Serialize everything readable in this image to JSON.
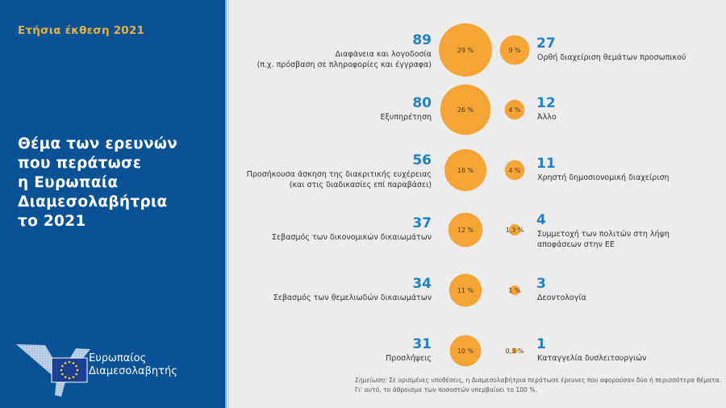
{
  "sidebar": {
    "report_year": "Ετήσια έκθεση 2021",
    "title_lines": [
      "Θέμα των ερευνών",
      "που περάτωσε",
      "η Ευρωπαία",
      "Διαμεσολαβήτρια",
      "το 2021"
    ],
    "logo_text_line1": "Ευρωπαίος",
    "logo_text_line2": "Διαμεσολαβητής"
  },
  "colors": {
    "panel": "#0a5296",
    "accent_gold": "#e8b23c",
    "number_blue": "#1f82c6",
    "bubble_orange": "#f5a535",
    "background": "#ececec"
  },
  "chart_data": {
    "type": "bubble",
    "title": "Θέμα των ερευνών που περάτωσε η Ευρωπαία Διαμεσολαβήτρια το 2021",
    "left_column": [
      {
        "count": 89,
        "percent_label": "29 %",
        "percent": 29,
        "label_lines": [
          "Διαφάνεια και λογοδοσία",
          "(π.χ. πρόσβαση σε πληροφορίες και έγγραφα)"
        ]
      },
      {
        "count": 80,
        "percent_label": "26 %",
        "percent": 26,
        "label_lines": [
          "Εξυπηρέτηση"
        ]
      },
      {
        "count": 56,
        "percent_label": "18 %",
        "percent": 18,
        "label_lines": [
          "Προσήκουσα άσκηση της διακριτικής ευχέρειας",
          "(και στις διαδικασίες επί παραβάσει)"
        ]
      },
      {
        "count": 37,
        "percent_label": "12 %",
        "percent": 12,
        "label_lines": [
          "Σεβασμός των δικονομικών δικαιωμάτων"
        ]
      },
      {
        "count": 34,
        "percent_label": "11 %",
        "percent": 11,
        "label_lines": [
          "Σεβασμός των θεμελιωδών δικαιωμάτων"
        ]
      },
      {
        "count": 31,
        "percent_label": "10 %",
        "percent": 10,
        "label_lines": [
          "Προσλήψεις"
        ]
      }
    ],
    "right_column": [
      {
        "count": 27,
        "percent_label": "9 %",
        "percent": 9,
        "label_lines": [
          "Ορθή διαχείριση θεμάτων προσωπικού"
        ]
      },
      {
        "count": 12,
        "percent_label": "4 %",
        "percent": 4,
        "label_lines": [
          "Άλλο"
        ]
      },
      {
        "count": 11,
        "percent_label": "4 %",
        "percent": 4,
        "label_lines": [
          "Χρηστή δημοσιονομική διαχείριση"
        ]
      },
      {
        "count": 4,
        "percent_label": "1,3 %",
        "percent": 1.3,
        "label_lines": [
          "Συμμετοχή των πολιτών στη λήψη",
          "αποφάσεων στην ΕΕ"
        ]
      },
      {
        "count": 3,
        "percent_label": "1 %",
        "percent": 1,
        "label_lines": [
          "Δεοντολογία"
        ]
      },
      {
        "count": 1,
        "percent_label": "0,3 %",
        "percent": 0.3,
        "label_lines": [
          "Καταγγελία δυσλειτουργιών"
        ]
      }
    ]
  },
  "note": {
    "prefix": "Σημείωση",
    "line1": ": Σε ορισμένες υποθέσεις, η Διαμεσολαβήτρια περάτωσε έρευνες που αφορούσαν δύο ή περισσότερα θέματα.",
    "line2": "Γι’ αυτό, το άθροισμα των ποσοστών υπερβαίνει το 100 %."
  }
}
